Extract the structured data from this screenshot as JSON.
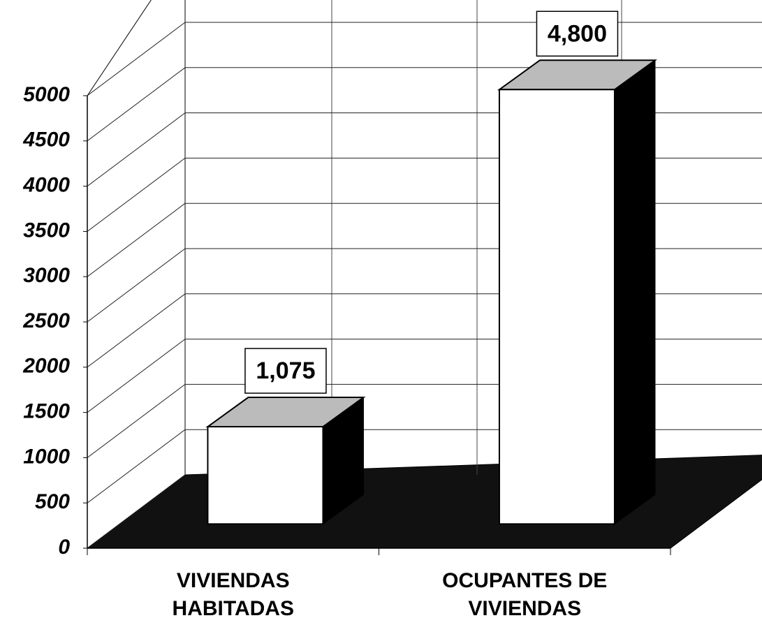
{
  "chart_data": {
    "type": "bar3d",
    "categories": [
      "VIVIENDAS HABITADAS",
      "OCUPANTES DE VIVIENDAS"
    ],
    "values": [
      1075,
      4800
    ],
    "value_labels": [
      "1,075",
      "4,800"
    ],
    "ylim": [
      0,
      5000
    ],
    "yticks": [
      0,
      500,
      1000,
      1500,
      2000,
      2500,
      3000,
      3500,
      4000,
      4500,
      5000
    ],
    "grid": true,
    "color": "#ffffff"
  }
}
